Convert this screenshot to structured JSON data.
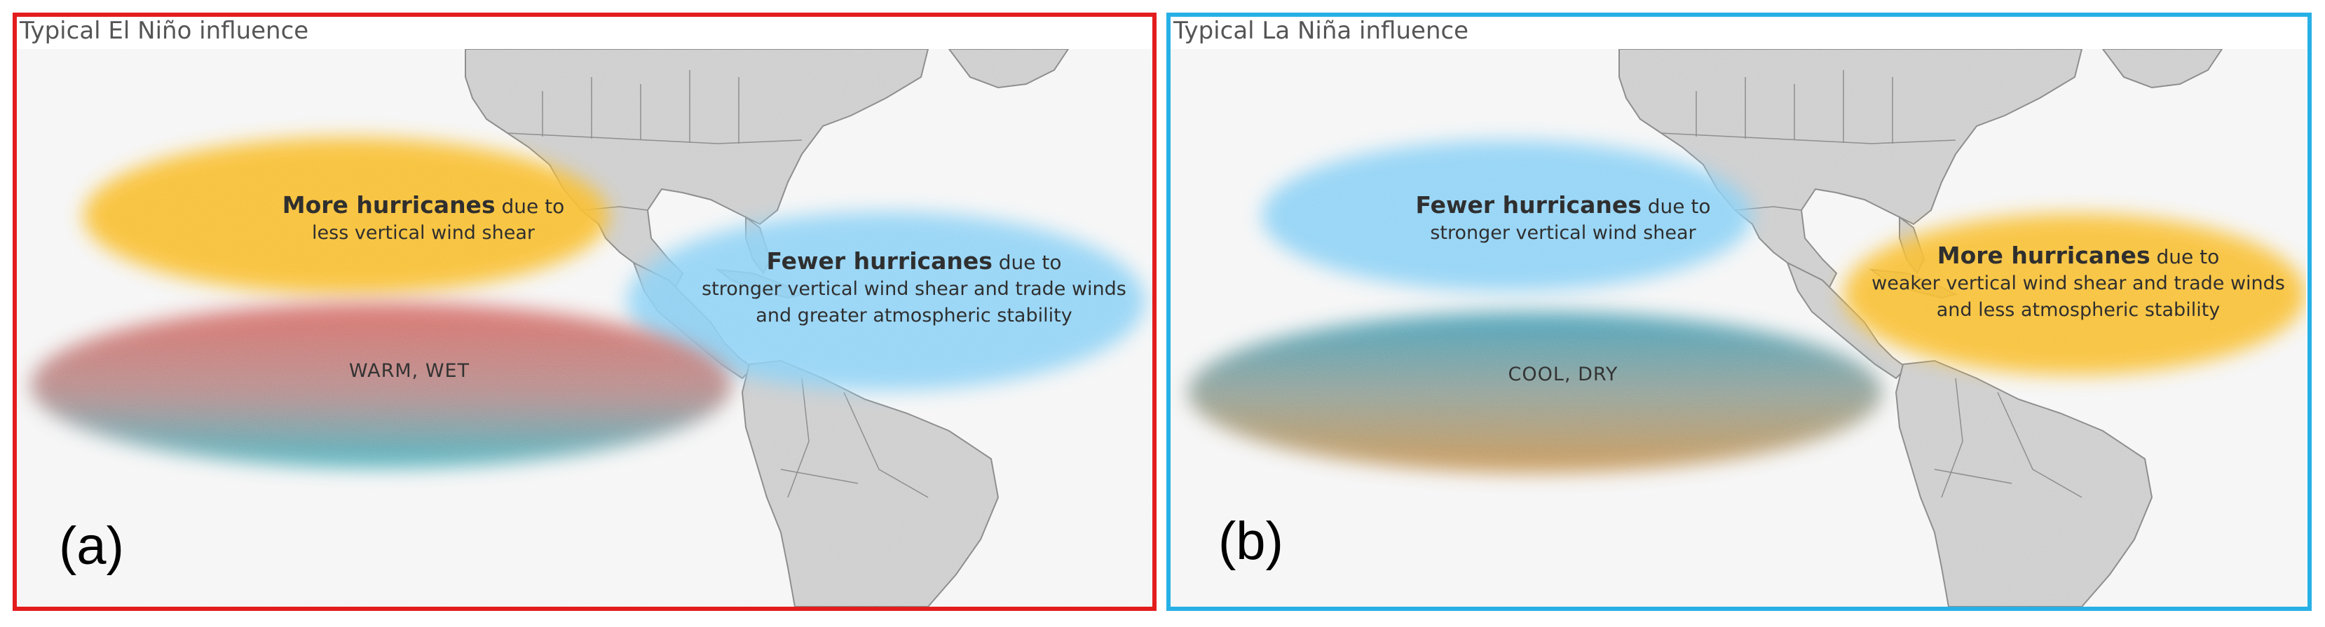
{
  "panels": [
    {
      "title": "Typical El Niño influence",
      "letter": "(a)",
      "border_color": "#e31d1d",
      "atlantic_label": {
        "emphasis": "Fewer hurricanes",
        "rest": "due to",
        "line2": "stronger vertical wind shear and trade winds",
        "line3": "and greater atmospheric stability"
      },
      "pacific_label": {
        "emphasis": "More hurricanes",
        "rest": "due to",
        "line2": "less vertical wind shear"
      },
      "enso_label": "WARM, WET",
      "colors": {
        "pacific_blob": "#f9bf2f",
        "atlantic_blob": "#8dd2f6",
        "equator_top": "#d9665f",
        "equator_bottom": "#3fb0bd"
      }
    },
    {
      "title": "Typical La Niña influence",
      "letter": "(b)",
      "border_color": "#27b0e6",
      "atlantic_label": {
        "emphasis": "More hurricanes",
        "rest": "due to",
        "line2": "weaker vertical wind shear and trade winds",
        "line3": "and less atmospheric stability"
      },
      "pacific_label": {
        "emphasis": "Fewer hurricanes",
        "rest": "due to",
        "line2": "stronger vertical wind shear"
      },
      "enso_label": "COOL, DRY",
      "colors": {
        "pacific_blob": "#8dd2f6",
        "atlantic_blob": "#f9bf2f",
        "equator_top": "#3b9db7",
        "equator_bottom": "#c9924a"
      }
    }
  ]
}
